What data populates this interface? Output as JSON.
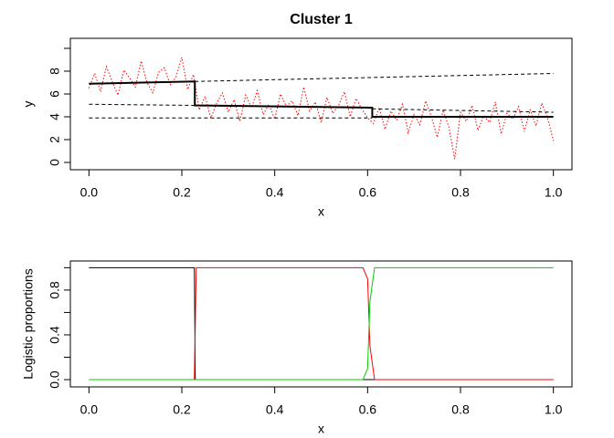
{
  "chart_data": [
    {
      "type": "line",
      "title": "Cluster 1",
      "xlabel": "x",
      "ylabel": "y",
      "xlim": [
        -0.04,
        1.04
      ],
      "ylim": [
        -0.64,
        10.88
      ],
      "xticks": [
        {
          "value": 0,
          "label": "0.0"
        },
        {
          "value": 0.2,
          "label": "0.2"
        },
        {
          "value": 0.4,
          "label": "0.4"
        },
        {
          "value": 0.6,
          "label": "0.6"
        },
        {
          "value": 0.8,
          "label": "0.8"
        },
        {
          "value": 1,
          "label": "1.0"
        }
      ],
      "yticks": [
        0,
        2,
        4,
        6,
        8
      ],
      "yminorticks": [
        10
      ],
      "series": [
        {
          "color": "#ff0000",
          "dash": "dotted",
          "x": [
            0,
            0.0125,
            0.025,
            0.0375,
            0.05,
            0.0625,
            0.075,
            0.0875,
            0.1,
            0.1125,
            0.125,
            0.1375,
            0.15,
            0.1625,
            0.175,
            0.1875,
            0.2,
            0.2125,
            0.225,
            0.2375,
            0.25,
            0.2625,
            0.275,
            0.2875,
            0.3,
            0.3125,
            0.325,
            0.3375,
            0.35,
            0.3625,
            0.375,
            0.3875,
            0.4,
            0.4125,
            0.425,
            0.4375,
            0.45,
            0.4625,
            0.475,
            0.4875,
            0.5,
            0.5125,
            0.525,
            0.5375,
            0.55,
            0.5625,
            0.575,
            0.5875,
            0.6,
            0.6125,
            0.625,
            0.6375,
            0.65,
            0.6625,
            0.675,
            0.6875,
            0.7,
            0.7125,
            0.725,
            0.7375,
            0.75,
            0.7625,
            0.775,
            0.7875,
            0.8,
            0.8125,
            0.825,
            0.8375,
            0.85,
            0.8625,
            0.875,
            0.8875,
            0.9,
            0.9125,
            0.925,
            0.9375,
            0.95,
            0.9625,
            0.975,
            0.9875,
            1
          ],
          "values": [
            6.5,
            7.8,
            6.2,
            8.4,
            7.1,
            5.9,
            8.1,
            7.4,
            6.6,
            8.9,
            7.0,
            6.1,
            7.9,
            8.3,
            6.8,
            7.5,
            9.2,
            6.4,
            7.7,
            4.6,
            5.8,
            3.9,
            5.2,
            6.1,
            4.4,
            5.5,
            3.6,
            5.9,
            4.8,
            6.3,
            4.2,
            5.1,
            3.8,
            6.0,
            4.9,
            5.4,
            4.1,
            6.6,
            4.5,
            5.3,
            3.5,
            5.7,
            4.3,
            5.0,
            6.2,
            4.0,
            5.6,
            4.7,
            3.9,
            3.4,
            4.8,
            2.9,
            4.5,
            3.7,
            5.1,
            2.6,
            4.2,
            3.3,
            5.4,
            4.0,
            2.2,
            4.6,
            3.1,
            0.3,
            4.4,
            3.6,
            5.0,
            2.8,
            4.1,
            3.5,
            5.3,
            2.5,
            4.3,
            3.8,
            4.9,
            2.7,
            4.6,
            3.2,
            5.2,
            3.9,
            1.9
          ]
        },
        {
          "color": "#000000",
          "dash": "dashed",
          "x": [
            0,
            0.228
          ],
          "values": [
            5.1,
            5.0
          ]
        },
        {
          "color": "#000000",
          "dash": "dashed",
          "x": [
            0.228,
            1
          ],
          "values": [
            7.1,
            7.8
          ]
        },
        {
          "color": "#000000",
          "dash": "dashed",
          "x": [
            0,
            0.61
          ],
          "values": [
            3.9,
            3.9
          ]
        },
        {
          "color": "#000000",
          "dash": "dashed",
          "x": [
            0.61,
            1
          ],
          "values": [
            4.7,
            4.4
          ]
        },
        {
          "color": "#000000",
          "dash": "solid",
          "width": 2,
          "x": [
            0,
            0.228,
            0.228,
            0.61,
            0.61,
            1
          ],
          "values": [
            6.9,
            7.1,
            5.0,
            4.8,
            4.0,
            4.0
          ]
        }
      ]
    },
    {
      "type": "line",
      "xlabel": "x",
      "ylabel": "Logistic proportions",
      "xlim": [
        -0.04,
        1.04
      ],
      "ylim": [
        -0.065,
        1.06
      ],
      "xticks": [
        {
          "value": 0,
          "label": "0.0"
        },
        {
          "value": 0.2,
          "label": "0.2"
        },
        {
          "value": 0.4,
          "label": "0.4"
        },
        {
          "value": 0.6,
          "label": "0.6"
        },
        {
          "value": 0.8,
          "label": "0.8"
        },
        {
          "value": 1,
          "label": "1.0"
        }
      ],
      "yticks": [
        {
          "value": 0,
          "label": "0.0"
        },
        {
          "value": 0.4,
          "label": "0.4"
        },
        {
          "value": 0.8,
          "label": "0.8"
        }
      ],
      "yminorticks": [
        0.2,
        0.6,
        1
      ],
      "series": [
        {
          "color": "#000000",
          "dash": "solid",
          "x": [
            0,
            0.227,
            0.229,
            1
          ],
          "values": [
            1,
            1,
            0,
            0
          ]
        },
        {
          "color": "#ff0000",
          "dash": "solid",
          "x": [
            0,
            0.227,
            0.231,
            0.59,
            0.6,
            0.605,
            0.615,
            1
          ],
          "values": [
            0,
            0,
            1,
            1,
            0.9,
            0.3,
            0,
            0
          ]
        },
        {
          "color": "#00cc00",
          "dash": "solid",
          "x": [
            0,
            0.59,
            0.6,
            0.605,
            0.615,
            1
          ],
          "values": [
            0,
            0,
            0.1,
            0.7,
            1,
            1
          ]
        }
      ]
    }
  ]
}
